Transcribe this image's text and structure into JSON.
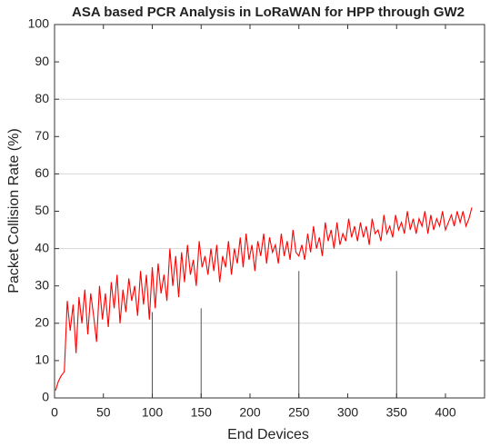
{
  "chart_data": {
    "type": "line",
    "title": "ASA based PCR Analysis in LoRaWAN for HPP through GW2",
    "xlabel": "End Devices",
    "ylabel": "Packet Collision Rate (%)",
    "xlim": [
      0,
      440
    ],
    "ylim": [
      0,
      100
    ],
    "xticks": [
      0,
      50,
      100,
      150,
      200,
      250,
      300,
      350,
      400
    ],
    "yticks": [
      0,
      10,
      20,
      30,
      40,
      50,
      60,
      70,
      80,
      90,
      100
    ],
    "grid_y": [
      20,
      40,
      60,
      80
    ],
    "reference_lines": [
      {
        "x": 100,
        "top": 23
      },
      {
        "x": 150,
        "top": 24
      },
      {
        "x": 250,
        "top": 34
      },
      {
        "x": 350,
        "top": 34
      }
    ],
    "x": [
      1,
      4,
      7,
      10,
      13,
      16,
      19,
      22,
      25,
      28,
      31,
      34,
      37,
      40,
      43,
      46,
      49,
      52,
      55,
      58,
      61,
      64,
      67,
      70,
      73,
      76,
      79,
      82,
      85,
      88,
      91,
      94,
      97,
      100,
      103,
      106,
      109,
      112,
      115,
      118,
      121,
      124,
      127,
      130,
      133,
      136,
      139,
      142,
      145,
      148,
      151,
      154,
      157,
      160,
      163,
      166,
      169,
      172,
      175,
      178,
      181,
      184,
      187,
      190,
      193,
      196,
      199,
      202,
      205,
      208,
      211,
      214,
      217,
      220,
      223,
      226,
      229,
      232,
      235,
      238,
      241,
      244,
      247,
      250,
      253,
      256,
      259,
      262,
      265,
      268,
      271,
      274,
      277,
      280,
      283,
      286,
      289,
      292,
      295,
      298,
      301,
      304,
      307,
      310,
      313,
      316,
      319,
      322,
      325,
      328,
      331,
      334,
      337,
      340,
      343,
      346,
      349,
      352,
      355,
      358,
      361,
      364,
      367,
      370,
      373,
      376,
      379,
      382,
      385,
      388,
      391,
      394,
      397,
      400,
      403,
      406,
      409,
      412,
      415,
      418,
      421,
      424,
      427
    ],
    "series": [
      {
        "color": "#ff0000",
        "values": [
          2,
          4.5,
          6,
          7,
          26,
          18,
          25,
          12,
          27,
          20,
          29,
          17,
          28,
          22,
          15,
          30,
          21,
          28,
          19,
          31,
          24,
          33,
          20,
          29,
          23,
          32,
          26,
          30,
          22,
          34,
          25,
          33,
          21,
          35,
          24,
          36,
          28,
          33,
          26,
          40,
          30,
          38,
          27,
          39,
          31,
          41,
          33,
          37,
          30,
          42,
          35,
          38,
          33,
          40,
          34,
          41,
          31,
          38,
          35,
          42,
          33,
          40,
          36,
          43,
          35,
          44,
          37,
          41,
          34,
          42,
          38,
          44,
          36,
          43,
          39,
          41,
          36,
          44,
          38,
          42,
          37,
          45,
          39,
          38,
          41,
          37,
          44,
          39,
          46,
          40,
          43,
          38,
          47,
          42,
          45,
          40,
          47,
          41,
          44,
          42,
          48,
          43,
          46,
          42,
          47,
          43,
          46,
          41,
          48,
          44,
          45,
          42,
          49,
          44,
          46,
          43,
          49,
          45,
          47,
          44,
          50,
          45,
          48,
          44,
          48,
          46,
          50,
          44,
          49,
          45,
          48,
          46,
          50,
          45,
          47,
          49,
          46,
          50,
          47,
          50,
          46,
          48,
          51
        ]
      }
    ]
  }
}
